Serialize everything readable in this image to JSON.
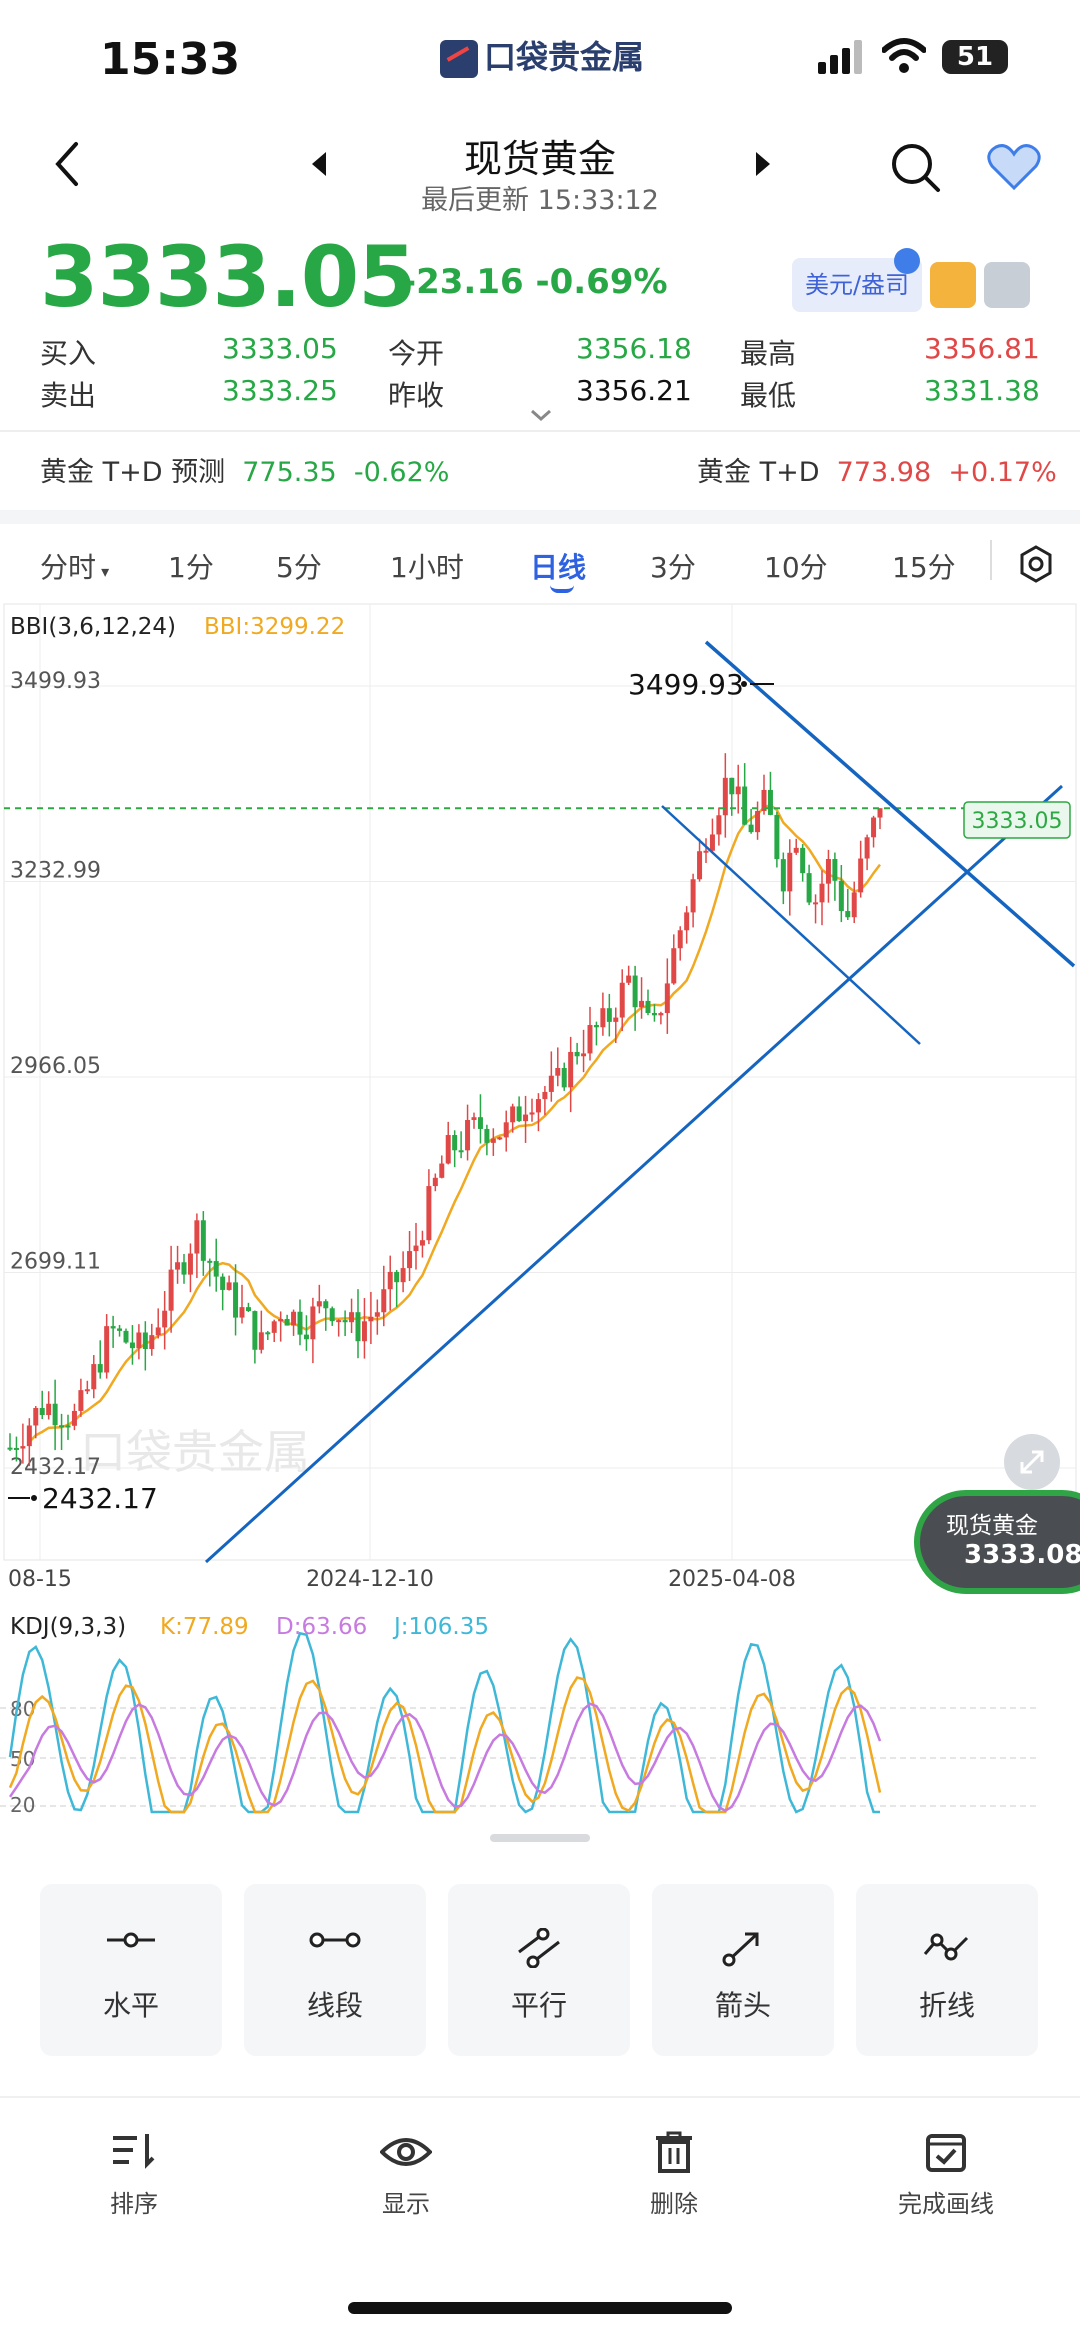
{
  "status": {
    "time": "15:33",
    "brand": "口袋贵金属",
    "battery": "51"
  },
  "header": {
    "title": "现货黄金",
    "subtitle": "最后更新 15:33:12"
  },
  "price": {
    "last": "3333.05",
    "change": "-23.16",
    "pct": "-0.69%",
    "unit_btn": "美元/盎司"
  },
  "quotes": {
    "buy_label": "买入",
    "buy": "3333.05",
    "sell_label": "卖出",
    "sell": "3333.25",
    "open_label": "今开",
    "open": "3356.18",
    "prev_label": "昨收",
    "prev": "3356.21",
    "high_label": "最高",
    "high": "3356.81",
    "low_label": "最低",
    "low": "3331.38"
  },
  "prediction": {
    "left_name": "黄金 T+D 预测",
    "left_value": "775.35",
    "left_pct": "-0.62%",
    "right_name": "黄金 T+D",
    "right_value": "773.98",
    "right_pct": "+0.17%"
  },
  "tabs": [
    "分时",
    "1分",
    "5分",
    "1小时",
    "日线",
    "3分",
    "10分",
    "15分"
  ],
  "active_tab": "日线",
  "chart": {
    "indicator": "BBI(3,6,12,24)",
    "bbi_value": "BBI:3299.22",
    "y_ticks": [
      "3499.93",
      "3232.99",
      "2966.05",
      "2699.11",
      "2432.17"
    ],
    "x_ticks": [
      "08-15",
      "2024-12-10",
      "2025-04-08"
    ],
    "max_label": "3499.93",
    "min_label": "2432.17",
    "current_label": "3333.05",
    "watermark": "口袋贵金属"
  },
  "float_card": {
    "name": "现货黄金",
    "price": "3333.08"
  },
  "kdj": {
    "name": "KDJ(9,3,3)",
    "k": "K:77.89",
    "d": "D:63.66",
    "j": "J:106.35",
    "levels": [
      "80",
      "50",
      "20"
    ]
  },
  "tools": [
    {
      "label": "水平",
      "icon": "horizontal-line-icon"
    },
    {
      "label": "线段",
      "icon": "segment-icon"
    },
    {
      "label": "平行",
      "icon": "parallel-icon"
    },
    {
      "label": "箭头",
      "icon": "arrow-icon"
    },
    {
      "label": "折线",
      "icon": "polyline-icon"
    }
  ],
  "bottom_nav": [
    {
      "label": "排序",
      "icon": "sort-icon"
    },
    {
      "label": "显示",
      "icon": "eye-icon"
    },
    {
      "label": "删除",
      "icon": "trash-icon"
    },
    {
      "label": "完成画线",
      "icon": "calendar-check-icon"
    }
  ],
  "colors": {
    "up": "#e04848",
    "down": "#27a745",
    "accent": "#2e62e0",
    "bbi": "#f0a920",
    "trendline": "#1565c0",
    "k": "#f0a920",
    "d": "#c77be0",
    "j": "#3fb8d8"
  },
  "chart_data": {
    "type": "candlestick",
    "ylim": [
      2432.17,
      3499.93
    ],
    "y_ticks": [
      3499.93,
      3232.99,
      2966.05,
      2699.11,
      2432.17
    ],
    "x_ticks": [
      "08-15",
      "2024-12-10",
      "2025-04-08"
    ],
    "last": 3333.05,
    "max": 3499.93,
    "min": 2432.17,
    "bbi": 3299.22
  }
}
